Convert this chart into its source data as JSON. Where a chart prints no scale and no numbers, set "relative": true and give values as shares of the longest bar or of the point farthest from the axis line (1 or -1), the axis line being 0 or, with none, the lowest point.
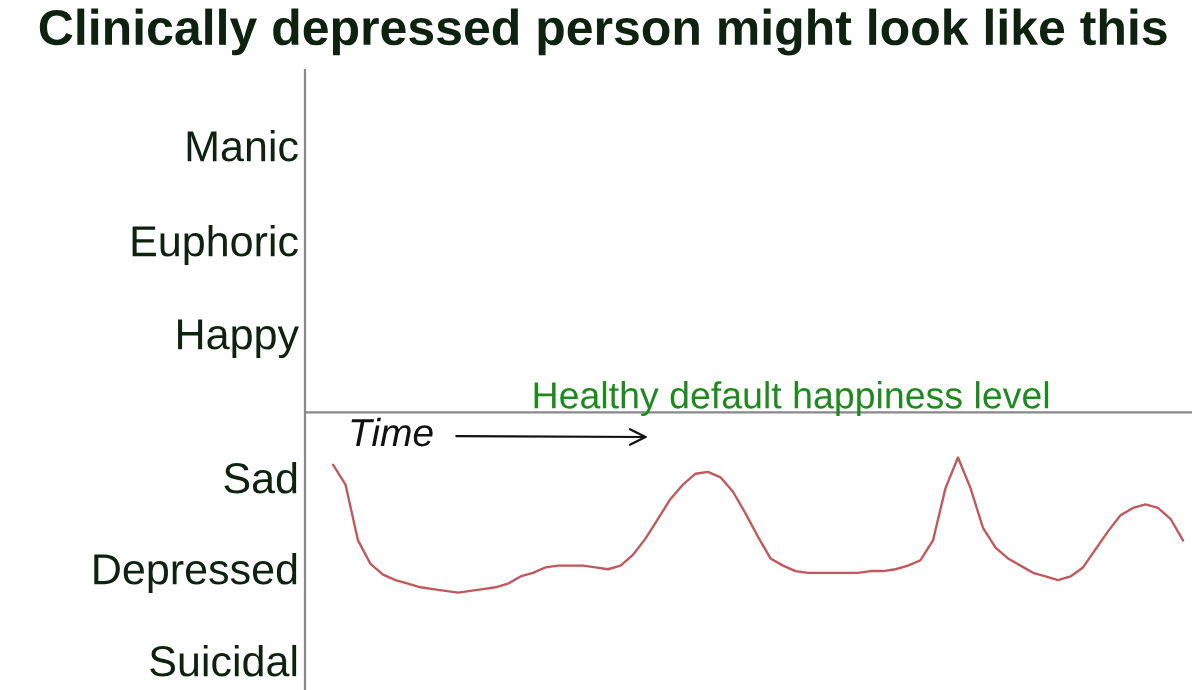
{
  "chart_data": {
    "type": "line",
    "title": "Clinically depressed person might look like this",
    "xlabel": "Time",
    "relative": true,
    "categories": [
      null,
      null,
      null,
      null,
      null,
      null,
      null,
      null,
      null,
      null,
      null,
      null,
      null,
      null,
      null,
      null,
      null,
      null,
      null,
      null,
      null,
      null,
      null,
      null,
      null,
      null,
      null,
      null,
      null,
      null,
      null,
      null,
      null,
      null,
      null,
      null,
      null,
      null,
      null,
      null,
      null,
      null,
      null,
      null,
      null,
      null,
      null,
      null,
      null,
      null,
      null,
      null,
      null,
      null,
      null,
      null,
      null,
      null,
      null,
      null,
      null,
      null,
      null,
      null,
      null,
      null,
      null,
      null,
      null
    ],
    "series": [
      {
        "color": "#c0585c",
        "values": [
          -0.29,
          -0.4,
          -0.71,
          -0.84,
          -0.9,
          -0.93,
          -0.95,
          -0.97,
          -0.98,
          -0.99,
          -1.0,
          -0.99,
          -0.98,
          -0.97,
          -0.95,
          -0.91,
          -0.89,
          -0.86,
          -0.85,
          -0.85,
          -0.85,
          -0.86,
          -0.87,
          -0.85,
          -0.79,
          -0.7,
          -0.59,
          -0.48,
          -0.4,
          -0.34,
          -0.33,
          -0.36,
          -0.44,
          -0.56,
          -0.69,
          -0.81,
          -0.85,
          -0.88,
          -0.89,
          -0.89,
          -0.89,
          -0.89,
          -0.89,
          -0.88,
          -0.88,
          -0.87,
          -0.85,
          -0.82,
          -0.71,
          -0.42,
          -0.25,
          -0.42,
          -0.64,
          -0.75,
          -0.81,
          -0.85,
          -0.89,
          -0.91,
          -0.93,
          -0.91,
          -0.86,
          -0.76,
          -0.66,
          -0.57,
          -0.53,
          -0.51,
          -0.53,
          -0.59,
          -0.71
        ]
      }
    ],
    "annotations": [
      "Manic",
      "Euphoric",
      "Happy",
      "Sad",
      "Depressed",
      "Suicidal"
    ],
    "ref_lines": [
      {
        "axis": "y",
        "value": 0,
        "label": "Healthy default happiness level",
        "color": "#888888"
      }
    ],
    "grid": false
  }
}
